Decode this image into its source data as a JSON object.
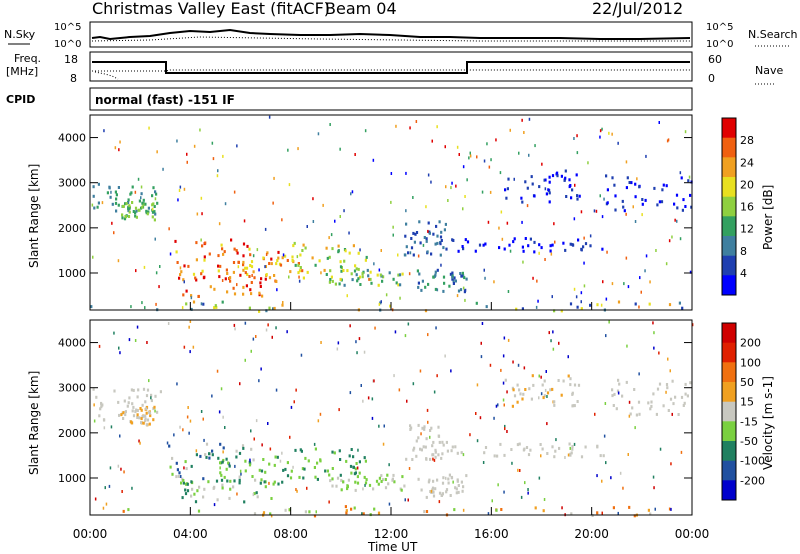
{
  "header": {
    "station": "Christmas Valley East (fitACF)",
    "beam": "Beam 04",
    "date": "22/Jul/2012"
  },
  "strip": {
    "nsky_label": "N.Sky",
    "nsearch_label": "N.Search",
    "freq_label_1": "Freq.",
    "freq_label_2": "[MHz]",
    "nave_label": "Nave",
    "cpid_label": "CPID",
    "cpid_text": "normal (fast) -151 IF",
    "noise_ticks": [
      "10^5",
      "10^0"
    ],
    "freq_ticks": [
      "18",
      "8"
    ],
    "nave_ticks": [
      "60",
      "0"
    ]
  },
  "chart_data": [
    {
      "type": "heatmap",
      "name": "power",
      "ylabel": "Slant Range [km]",
      "yticks": [
        "4000",
        "3000",
        "2000",
        "1000"
      ],
      "ylim": [
        180,
        4500
      ],
      "colorbar_label": "Power [dB]",
      "colorbar_ticks": [
        "28",
        "24",
        "20",
        "16",
        "12",
        "8",
        "4"
      ],
      "colors": [
        "#0000ff",
        "#1f3fb0",
        "#3f7f9f",
        "#33a060",
        "#8fd040",
        "#e8e020",
        "#f0a020",
        "#f06010",
        "#e00000"
      ]
    },
    {
      "type": "heatmap",
      "name": "velocity",
      "ylabel": "Slant Range [km]",
      "yticks": [
        "4000",
        "3000",
        "2000",
        "1000"
      ],
      "ylim": [
        180,
        4500
      ],
      "colorbar_label": "Velocity [m s-1]",
      "colorbar_ticks": [
        "200",
        "100",
        "50",
        "15",
        "-15",
        "-50",
        "-100",
        "-200"
      ],
      "colors": [
        "#0000cc",
        "#2050a0",
        "#208060",
        "#7ad040",
        "#c8c8c0",
        "#f0a020",
        "#f07010",
        "#e02000",
        "#d00000"
      ]
    }
  ],
  "xaxis": {
    "label": "Time UT",
    "ticks": [
      "00:00",
      "04:00",
      "08:00",
      "12:00",
      "16:00",
      "20:00",
      "00:00"
    ]
  }
}
